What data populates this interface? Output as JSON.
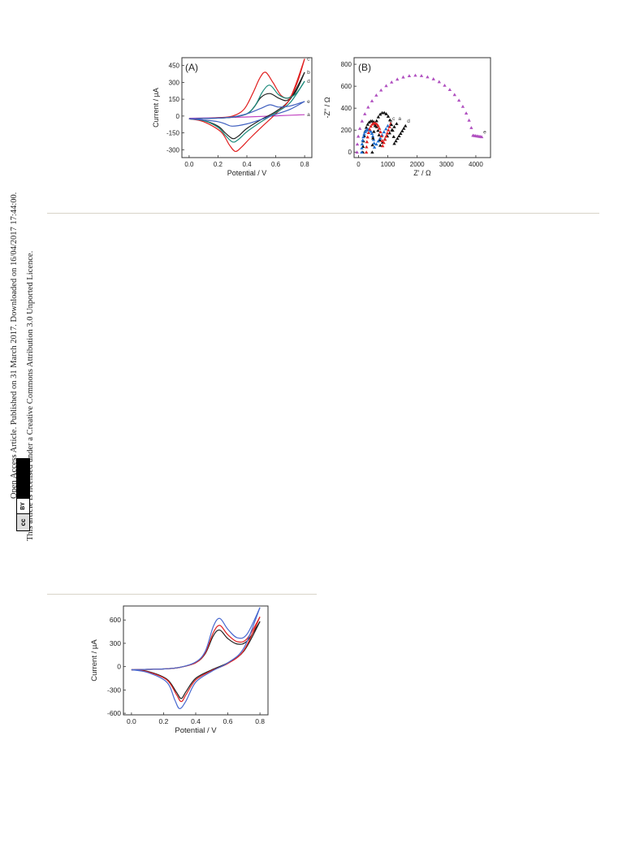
{
  "sidebar": {
    "line1": "Open Access Article. Published on 31 March 2017. Downloaded on 16/04/2017 17:44:00.",
    "line2": "This article is licensed under a Creative Commons Attribution 3.0 Unported Licence.",
    "badge_cc": "cc",
    "badge_by": "BY"
  },
  "chart_data": [
    {
      "type": "line",
      "panel_label": "(A)",
      "xlabel": "Potential / V",
      "ylabel": "Current / µA",
      "xlim": [
        -0.05,
        0.85
      ],
      "ylim": [
        -370,
        520
      ],
      "xticks": [
        "0.0",
        "0.2",
        "0.4",
        "0.6",
        "0.8"
      ],
      "yticks": [
        "450",
        "300",
        "150",
        "0",
        "-150",
        "-300"
      ],
      "series": [
        {
          "name": "a",
          "color": "#c040c0",
          "x": [
            0.0,
            0.2,
            0.4,
            0.6,
            0.8
          ],
          "y": [
            -20,
            -15,
            -8,
            2,
            12
          ]
        },
        {
          "name": "b",
          "color": "#222222",
          "forward_x": [
            0.0,
            0.1,
            0.2,
            0.3,
            0.4,
            0.45,
            0.5,
            0.56,
            0.62,
            0.68,
            0.74,
            0.8
          ],
          "forward_y": [
            -25,
            -22,
            -18,
            -10,
            20,
            80,
            170,
            200,
            160,
            140,
            220,
            390
          ],
          "reverse_x": [
            0.8,
            0.7,
            0.6,
            0.5,
            0.4,
            0.34,
            0.3,
            0.25,
            0.2,
            0.1,
            0.0
          ],
          "reverse_y": [
            390,
            150,
            40,
            -30,
            -110,
            -180,
            -200,
            -150,
            -90,
            -40,
            -25
          ]
        },
        {
          "name": "c",
          "color": "#e02020",
          "forward_x": [
            0.0,
            0.1,
            0.2,
            0.3,
            0.38,
            0.44,
            0.49,
            0.53,
            0.58,
            0.64,
            0.7,
            0.75,
            0.8
          ],
          "forward_y": [
            -25,
            -22,
            -15,
            0,
            60,
            200,
            340,
            390,
            300,
            180,
            170,
            300,
            510
          ],
          "reverse_x": [
            0.8,
            0.7,
            0.6,
            0.5,
            0.42,
            0.36,
            0.32,
            0.28,
            0.22,
            0.1,
            0.0
          ],
          "reverse_y": [
            510,
            160,
            20,
            -100,
            -200,
            -280,
            -315,
            -260,
            -140,
            -50,
            -25
          ]
        },
        {
          "name": "d",
          "color": "#1a8a7a",
          "forward_x": [
            0.0,
            0.1,
            0.2,
            0.3,
            0.4,
            0.46,
            0.51,
            0.56,
            0.62,
            0.68,
            0.74,
            0.8
          ],
          "forward_y": [
            -25,
            -22,
            -18,
            -10,
            20,
            100,
            220,
            275,
            190,
            160,
            200,
            310
          ],
          "reverse_x": [
            0.8,
            0.7,
            0.6,
            0.5,
            0.4,
            0.34,
            0.3,
            0.25,
            0.2,
            0.1,
            0.0
          ],
          "reverse_y": [
            310,
            120,
            30,
            -50,
            -140,
            -210,
            -230,
            -170,
            -100,
            -40,
            -25
          ]
        },
        {
          "name": "e",
          "color": "#4060c0",
          "forward_x": [
            0.0,
            0.1,
            0.2,
            0.3,
            0.4,
            0.5,
            0.56,
            0.62,
            0.7,
            0.8
          ],
          "forward_y": [
            -25,
            -22,
            -18,
            -8,
            20,
            70,
            100,
            80,
            90,
            130
          ],
          "reverse_x": [
            0.8,
            0.7,
            0.6,
            0.5,
            0.4,
            0.3,
            0.25,
            0.2,
            0.1,
            0.0
          ],
          "reverse_y": [
            130,
            60,
            15,
            -30,
            -70,
            -90,
            -70,
            -50,
            -35,
            -25
          ]
        }
      ]
    },
    {
      "type": "scatter",
      "panel_label": "(B)",
      "xlabel": "Z' / Ω",
      "ylabel": "-Z\" / Ω",
      "xlim": [
        -150,
        4500
      ],
      "ylim": [
        -50,
        860
      ],
      "xticks": [
        "0",
        "1000",
        "2000",
        "3000",
        "4000"
      ],
      "yticks": [
        "800",
        "600",
        "400",
        "200",
        "0"
      ],
      "series": [
        {
          "name": "a",
          "color": "#111111",
          "center": 450,
          "radius": 300,
          "tail_end": [
            1300,
            260
          ]
        },
        {
          "name": "b",
          "color": "#2070d0",
          "center": 330,
          "radius": 220,
          "tail_end": [
            1000,
            240
          ]
        },
        {
          "name": "c",
          "color": "#e02020",
          "center": 550,
          "radius": 280,
          "tail_end": [
            1100,
            260
          ]
        },
        {
          "name": "d",
          "color": "#111111",
          "center": 850,
          "radius": 380,
          "tail_end": [
            1600,
            240
          ]
        },
        {
          "name": "e",
          "color": "#b050c0",
          "center": 1950,
          "radius": 2000,
          "tail_end": [
            4200,
            140
          ]
        }
      ]
    },
    {
      "type": "line",
      "xlabel": "Potential / V",
      "ylabel": "Current / µA",
      "xlim": [
        -0.05,
        0.85
      ],
      "ylim": [
        -620,
        780
      ],
      "xticks": [
        "0.0",
        "0.2",
        "0.4",
        "0.6",
        "0.8"
      ],
      "yticks": [
        "600",
        "300",
        "0",
        "-300",
        "-600"
      ],
      "series": [
        {
          "color": "#222222",
          "forward_x": [
            0.0,
            0.1,
            0.2,
            0.3,
            0.4,
            0.46,
            0.51,
            0.55,
            0.6,
            0.66,
            0.72,
            0.8
          ],
          "forward_y": [
            -40,
            -35,
            -30,
            -10,
            50,
            170,
            400,
            470,
            360,
            290,
            330,
            580
          ],
          "reverse_x": [
            0.8,
            0.7,
            0.6,
            0.5,
            0.4,
            0.34,
            0.31,
            0.28,
            0.22,
            0.1,
            0.0
          ],
          "reverse_y": [
            580,
            200,
            50,
            -40,
            -150,
            -320,
            -410,
            -330,
            -160,
            -60,
            -40
          ]
        },
        {
          "color": "#e02020",
          "forward_x": [
            0.0,
            0.1,
            0.2,
            0.3,
            0.4,
            0.46,
            0.51,
            0.55,
            0.6,
            0.66,
            0.72,
            0.8
          ],
          "forward_y": [
            -40,
            -35,
            -30,
            -10,
            50,
            180,
            440,
            530,
            410,
            320,
            360,
            640
          ],
          "reverse_x": [
            0.8,
            0.7,
            0.6,
            0.5,
            0.4,
            0.34,
            0.31,
            0.28,
            0.22,
            0.1,
            0.0
          ],
          "reverse_y": [
            640,
            210,
            40,
            -50,
            -170,
            -360,
            -450,
            -360,
            -170,
            -65,
            -40
          ]
        },
        {
          "color": "#4a6ad0",
          "forward_x": [
            0.0,
            0.1,
            0.2,
            0.3,
            0.4,
            0.46,
            0.51,
            0.55,
            0.6,
            0.66,
            0.72,
            0.8
          ],
          "forward_y": [
            -40,
            -35,
            -30,
            -10,
            60,
            200,
            520,
            620,
            480,
            370,
            420,
            760
          ],
          "reverse_x": [
            0.8,
            0.7,
            0.6,
            0.5,
            0.4,
            0.34,
            0.3,
            0.27,
            0.22,
            0.1,
            0.0
          ],
          "reverse_y": [
            760,
            240,
            50,
            -60,
            -200,
            -440,
            -540,
            -430,
            -200,
            -75,
            -40
          ]
        }
      ]
    }
  ]
}
